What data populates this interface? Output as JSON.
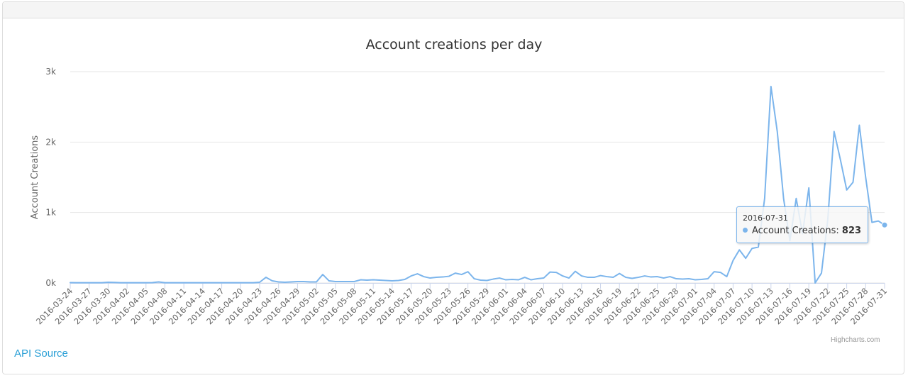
{
  "api_link": "API Source",
  "credits": "Highcharts.com",
  "tooltip": {
    "date": "2016-07-31",
    "series_label": "Account Creations:",
    "value": "823"
  },
  "colors": {
    "series": "#7cb5ec",
    "grid": "#e6e6e6",
    "link": "#2a9fd6"
  },
  "chart_data": {
    "type": "line",
    "title": "Account creations per day",
    "xlabel": "",
    "ylabel": "Account Creations",
    "ylim": [
      0,
      3000
    ],
    "yticks": [
      0,
      1000,
      2000,
      3000
    ],
    "ytick_labels": [
      "0k",
      "1k",
      "2k",
      "3k"
    ],
    "x_start": "2016-03-24",
    "x_end": "2016-07-31",
    "x_tick_labels": [
      "2016-03-24",
      "2016-03-27",
      "2016-03-30",
      "2016-04-02",
      "2016-04-05",
      "2016-04-08",
      "2016-04-11",
      "2016-04-14",
      "2016-04-17",
      "2016-04-20",
      "2016-04-23",
      "2016-04-26",
      "2016-04-29",
      "2016-05-02",
      "2016-05-05",
      "2016-05-08",
      "2016-05-11",
      "2016-05-14",
      "2016-05-17",
      "2016-05-20",
      "2016-05-23",
      "2016-05-26",
      "2016-05-29",
      "2016-06-01",
      "2016-06-04",
      "2016-06-07",
      "2016-06-10",
      "2016-06-13",
      "2016-06-16",
      "2016-06-19",
      "2016-06-22",
      "2016-06-25",
      "2016-06-28",
      "2016-07-01",
      "2016-07-04",
      "2016-07-07",
      "2016-07-10",
      "2016-07-13",
      "2016-07-16",
      "2016-07-19",
      "2016-07-22",
      "2016-07-25",
      "2016-07-28",
      "2016-07-31"
    ],
    "grid": true,
    "legend": "none",
    "series": [
      {
        "values": [
          5,
          4,
          4,
          4,
          4,
          4,
          10,
          8,
          4,
          4,
          4,
          4,
          4,
          5,
          15,
          4,
          4,
          4,
          4,
          4,
          4,
          4,
          4,
          4,
          4,
          4,
          4,
          4,
          4,
          4,
          10,
          80,
          30,
          15,
          10,
          15,
          20,
          20,
          15,
          15,
          120,
          30,
          20,
          20,
          20,
          20,
          45,
          40,
          45,
          40,
          35,
          30,
          35,
          50,
          100,
          130,
          90,
          70,
          80,
          85,
          95,
          140,
          120,
          160,
          60,
          40,
          35,
          55,
          70,
          45,
          50,
          45,
          80,
          45,
          60,
          70,
          155,
          150,
          100,
          70,
          165,
          100,
          80,
          80,
          105,
          90,
          80,
          135,
          80,
          65,
          80,
          100,
          85,
          90,
          70,
          90,
          60,
          55,
          60,
          45,
          50,
          60,
          160,
          150,
          90,
          320,
          470,
          350,
          490,
          510,
          1200,
          2790,
          2150,
          1200,
          600,
          1200,
          700,
          1350,
          0,
          140,
          900,
          2150,
          1750,
          1320,
          1430,
          2240,
          1500,
          860,
          880,
          823
        ]
      }
    ]
  }
}
